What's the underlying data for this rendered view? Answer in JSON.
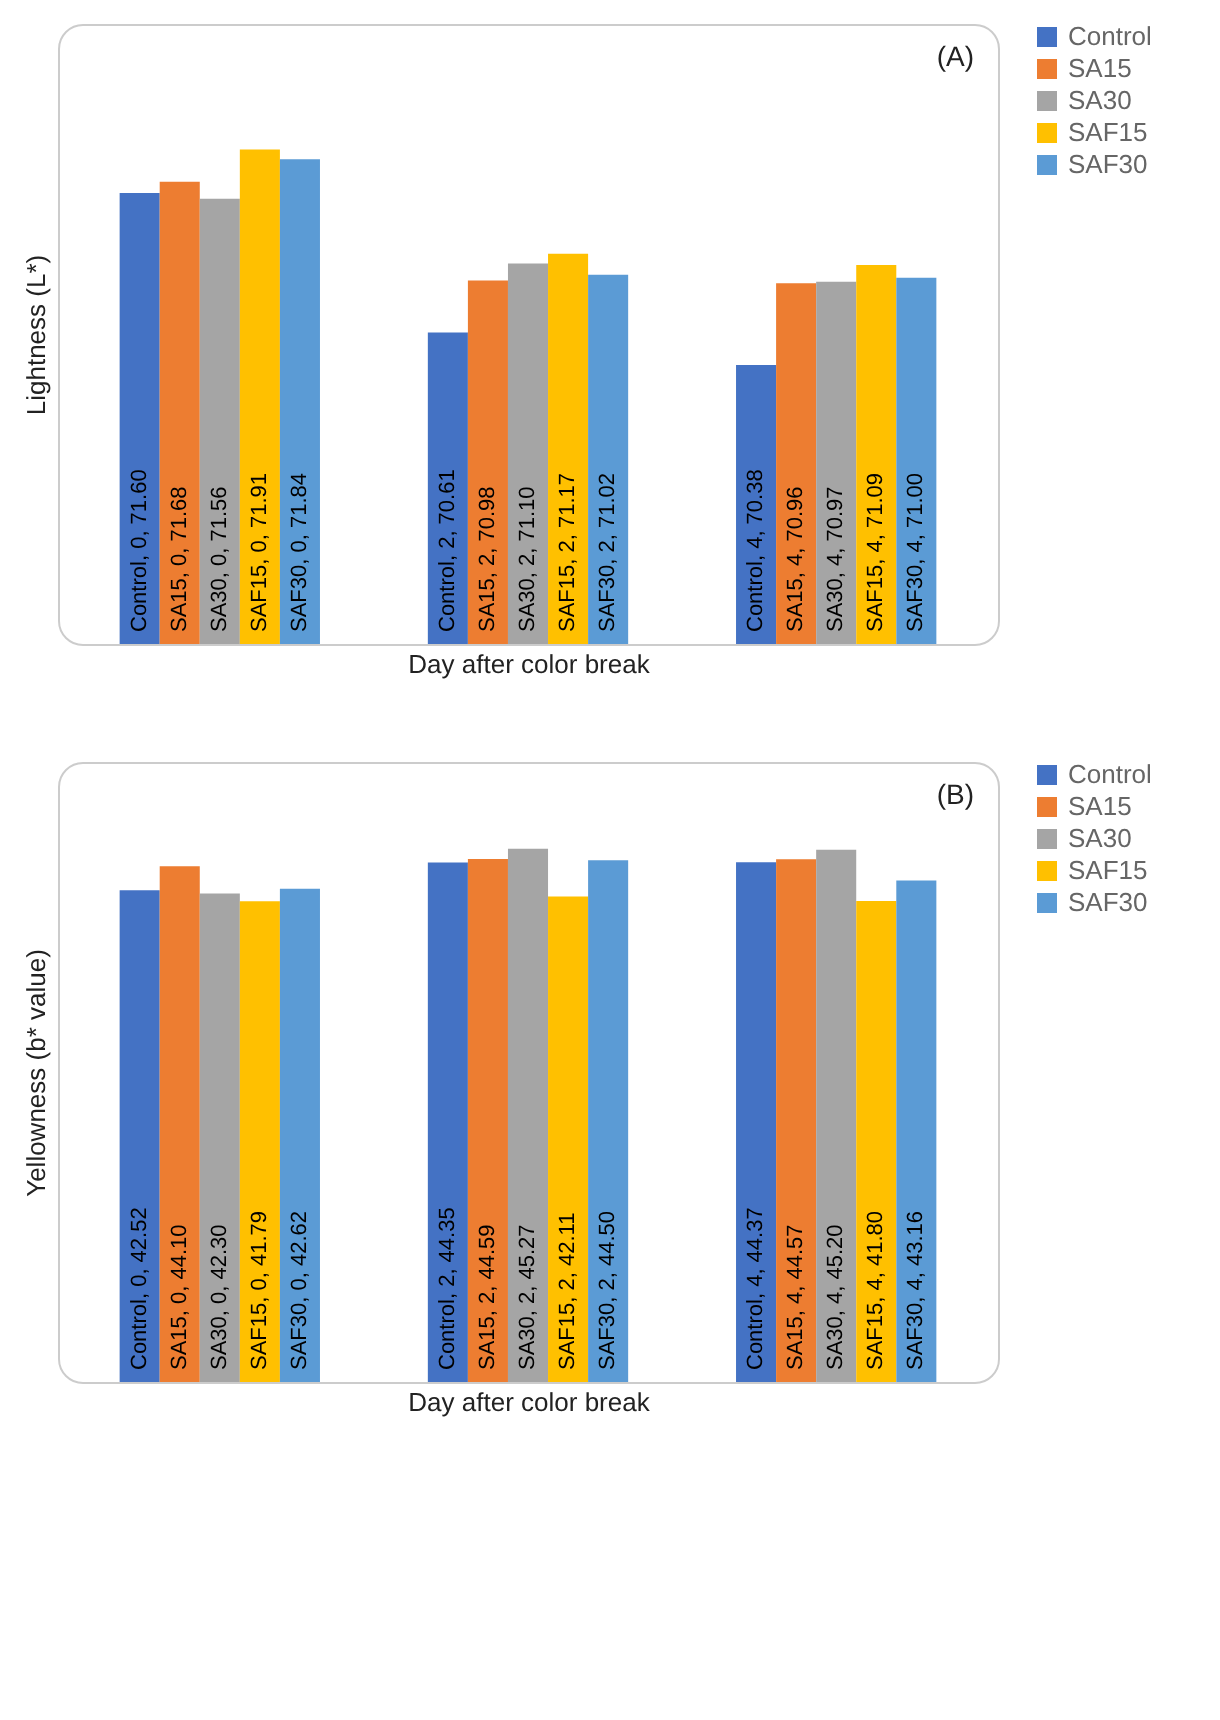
{
  "chart_data": [
    {
      "type": "bar",
      "title": "(A)",
      "xlabel": "Day after color break",
      "ylabel": "Lightness (L*)",
      "categories": [
        null,
        null,
        null
      ],
      "ylim": [
        68.4,
        72.8
      ],
      "legend": "right",
      "tick_labels": false,
      "grid": false,
      "series": [
        {
          "name": "Control",
          "color": "#4472c4",
          "values": [
            71.6,
            70.61,
            70.38
          ],
          "value_labels": [
            "Control, 0, 71.60",
            "Control, 2, 70.61",
            "Control, 4, 70.38"
          ]
        },
        {
          "name": "SA15",
          "color": "#ed7d31",
          "values": [
            71.68,
            70.98,
            70.96
          ],
          "value_labels": [
            "SA15, 0, 71.68",
            "SA15, 2, 70.98",
            "SA15, 4, 70.96"
          ]
        },
        {
          "name": "SA30",
          "color": "#a5a5a5",
          "values": [
            71.56,
            71.1,
            70.97
          ],
          "value_labels": [
            "SA30, 0, 71.56",
            "SA30, 2, 71.10",
            "SA30, 4, 70.97"
          ]
        },
        {
          "name": "SAF15",
          "color": "#ffc000",
          "values": [
            71.91,
            71.17,
            71.09
          ],
          "value_labels": [
            "SAF15, 0, 71.91",
            "SAF15, 2, 71.17",
            "SAF15, 4, 71.09"
          ]
        },
        {
          "name": "SAF30",
          "color": "#5b9bd5",
          "values": [
            71.84,
            71.02,
            71.0
          ],
          "value_labels": [
            "SAF30, 0, 71.84",
            "SAF30, 2, 71.02",
            "SAF30, 4, 71.00"
          ]
        }
      ]
    },
    {
      "type": "bar",
      "title": "(B)",
      "xlabel": "Day after color break",
      "ylabel": "Yellowness (b* value)",
      "categories": [
        null,
        null,
        null
      ],
      "ylim": [
        10,
        51
      ],
      "legend": "right",
      "tick_labels": false,
      "grid": false,
      "series": [
        {
          "name": "Control",
          "color": "#4472c4",
          "values": [
            42.52,
            44.35,
            44.37
          ],
          "value_labels": [
            "Control, 0, 42.52",
            "Control, 2, 44.35",
            "Control, 4, 44.37"
          ]
        },
        {
          "name": "SA15",
          "color": "#ed7d31",
          "values": [
            44.1,
            44.59,
            44.57
          ],
          "value_labels": [
            "SA15, 0, 44.10",
            "SA15, 2, 44.59",
            "SA15, 4, 44.57"
          ]
        },
        {
          "name": "SA30",
          "color": "#a5a5a5",
          "values": [
            42.3,
            45.27,
            45.2
          ],
          "value_labels": [
            "SA30, 0, 42.30",
            "SA30, 2, 45.27",
            "SA30, 4, 45.20"
          ]
        },
        {
          "name": "SAF15",
          "color": "#ffc000",
          "values": [
            41.79,
            42.11,
            41.8
          ],
          "value_labels": [
            "SAF15, 0, 41.79",
            "SAF15, 2, 42.11",
            "SAF15, 4, 41.80"
          ]
        },
        {
          "name": "SAF30",
          "color": "#5b9bd5",
          "values": [
            42.62,
            44.5,
            43.16
          ],
          "value_labels": [
            "SAF30, 0, 42.62",
            "SAF30, 2, 44.50",
            "SAF30, 4, 43.16"
          ]
        }
      ]
    }
  ]
}
